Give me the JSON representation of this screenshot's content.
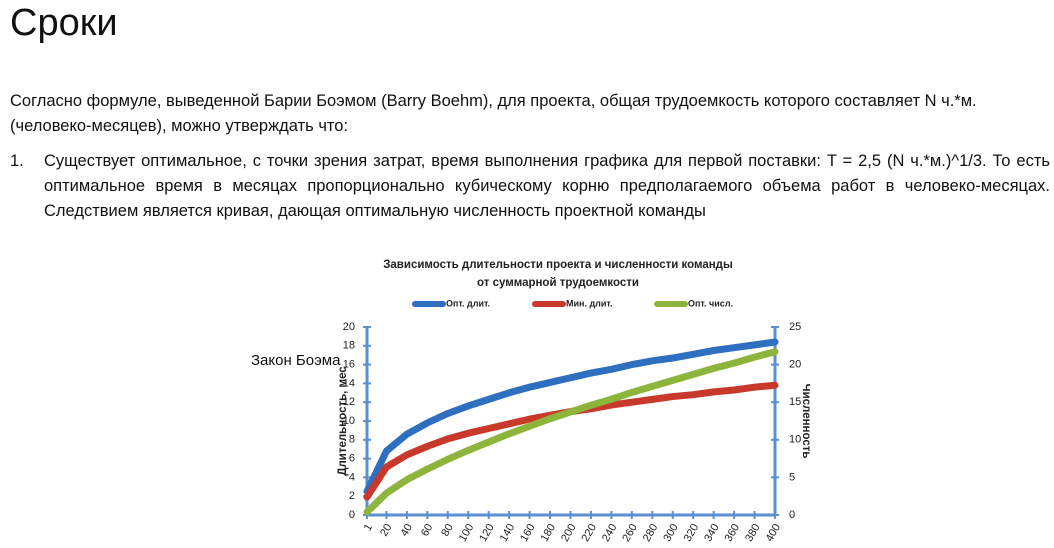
{
  "header": {
    "title": "Сроки"
  },
  "intro": "Согласно формуле, выведенной Барии Боэмом (Barry Boehm), для проекта, общая трудоемкость которого составляет N ч.*м. (человеко-месяцев), можно утверждать что:",
  "list": [
    {
      "number": "1.",
      "text": "Существует оптимальное, с точки зрения затрат, время выполнения графика для первой поставки: T = 2,5 (N ч.*м.)^1/3. То есть оптимальное время в месяцах пропорционально кубическому корню предполагаемого объема работ в человеко-месяцах. Следствием является кривая, дающая оптимальную численность проектной команды"
    }
  ],
  "caption": "Закон Боэма",
  "chart_data": {
    "type": "line",
    "title": "Зависимость длительности проекта и численности команды",
    "subtitle": "от суммарной трудоемкости",
    "y_label": "Длительность, мес",
    "y2_label": "Численность",
    "x": [
      1,
      20,
      40,
      60,
      80,
      100,
      120,
      140,
      160,
      180,
      200,
      220,
      240,
      260,
      280,
      300,
      320,
      340,
      360,
      380,
      400
    ],
    "series": [
      {
        "name": "Опт. длит.",
        "color": "#2e6fc0",
        "values": [
          2.5,
          6.8,
          8.6,
          9.8,
          10.8,
          11.6,
          12.3,
          13.0,
          13.6,
          14.1,
          14.6,
          15.1,
          15.5,
          16.0,
          16.4,
          16.7,
          17.1,
          17.5,
          17.8,
          18.1,
          18.4
        ]
      },
      {
        "name": "Мин. длит.",
        "color": "#c8392b",
        "values": [
          1.9,
          5.1,
          6.4,
          7.3,
          8.1,
          8.7,
          9.2,
          9.7,
          10.2,
          10.6,
          11.0,
          11.3,
          11.7,
          12.0,
          12.3,
          12.6,
          12.8,
          13.1,
          13.3,
          13.6,
          13.8
        ]
      },
      {
        "name": "Опт. числ.",
        "color": "#8db53c",
        "axis": "y2",
        "values": [
          0.4,
          2.9,
          4.7,
          6.1,
          7.4,
          8.6,
          9.7,
          10.8,
          11.8,
          12.8,
          13.7,
          14.6,
          15.4,
          16.3,
          17.1,
          17.9,
          18.7,
          19.5,
          20.2,
          21.0,
          21.7
        ]
      }
    ],
    "xlim": [
      1,
      400
    ],
    "xticks": [
      1,
      20,
      40,
      60,
      80,
      100,
      120,
      140,
      160,
      180,
      200,
      220,
      240,
      260,
      280,
      300,
      320,
      340,
      360,
      380,
      400
    ],
    "ylim": [
      0,
      20
    ],
    "yticks": [
      0,
      2,
      4,
      6,
      8,
      10,
      12,
      14,
      16,
      18,
      20
    ],
    "y2lim": [
      0,
      25
    ],
    "y2ticks": [
      0,
      5,
      10,
      15,
      20,
      25
    ],
    "legend": "top"
  }
}
